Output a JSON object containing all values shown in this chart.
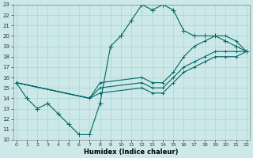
{
  "xlabel": "Humidex (Indice chaleur)",
  "bg_color": "#cce8e8",
  "line_color": "#006666",
  "grid_color": "#aad4d4",
  "xmin": 0,
  "xmax": 22,
  "ymin": 10,
  "ymax": 23,
  "yticks": [
    10,
    11,
    12,
    13,
    14,
    15,
    16,
    17,
    18,
    19,
    20,
    21,
    22,
    23
  ],
  "xticks": [
    0,
    1,
    2,
    3,
    4,
    5,
    6,
    7,
    8,
    9,
    10,
    11,
    12,
    13,
    14,
    15,
    16,
    17,
    18,
    19,
    20,
    21,
    22
  ],
  "lines": [
    {
      "x": [
        0,
        1,
        2,
        3,
        4,
        5,
        6,
        7,
        8,
        9,
        10,
        11,
        12,
        13,
        14,
        15,
        16,
        17,
        18,
        19,
        20,
        21,
        22
      ],
      "y": [
        15.5,
        14,
        13,
        13.5,
        12.5,
        11.5,
        10.5,
        10.5,
        13.5,
        19,
        20,
        21.5,
        23,
        22.5,
        23,
        22.5,
        20.5,
        20,
        20,
        20,
        19.5,
        19,
        18.5
      ]
    },
    {
      "x": [
        0,
        7,
        8,
        12,
        13,
        14,
        15,
        16,
        17,
        18,
        19,
        20,
        21,
        22
      ],
      "y": [
        15.5,
        14,
        15.5,
        16,
        15.5,
        15.5,
        16.5,
        18,
        19,
        19.5,
        20,
        20,
        19.5,
        18.5
      ]
    },
    {
      "x": [
        0,
        7,
        8,
        12,
        13,
        14,
        15,
        16,
        17,
        18,
        19,
        20,
        21,
        22
      ],
      "y": [
        15.5,
        14,
        15.0,
        15.5,
        15.0,
        15.0,
        16.0,
        17.0,
        17.5,
        18.0,
        18.5,
        18.5,
        18.5,
        18.5
      ]
    },
    {
      "x": [
        0,
        7,
        8,
        12,
        13,
        14,
        15,
        16,
        17,
        18,
        19,
        20,
        21,
        22
      ],
      "y": [
        15.5,
        14,
        14.5,
        15.0,
        14.5,
        14.5,
        15.5,
        16.5,
        17.0,
        17.5,
        18.0,
        18.0,
        18.0,
        18.5
      ]
    }
  ]
}
